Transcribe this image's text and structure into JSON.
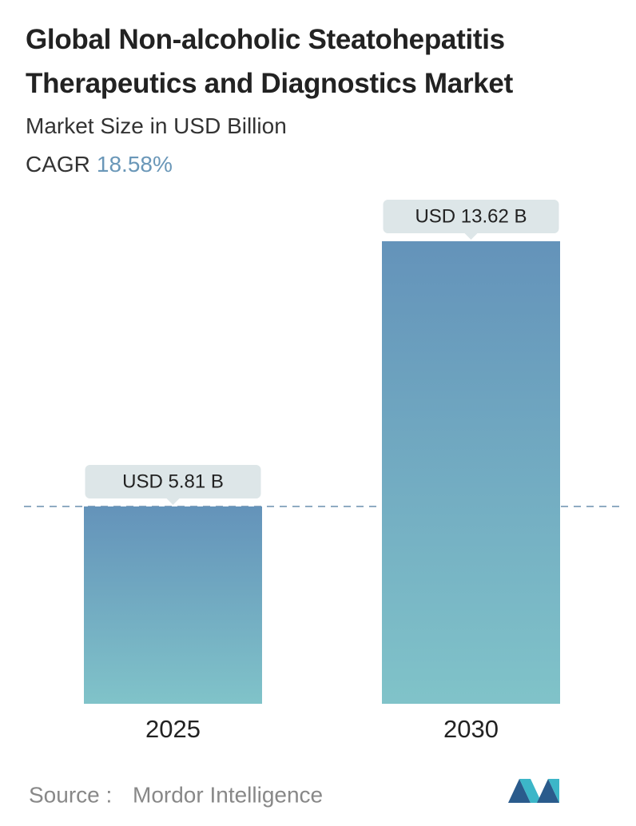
{
  "chart_data": {
    "type": "bar",
    "title": "Global Non-alcoholic Steatohepatitis Therapeutics and Diagnostics Market",
    "subtitle": "Market Size in USD Billion",
    "cagr_label": "CAGR",
    "cagr": "18.58%",
    "categories": [
      "2025",
      "2030"
    ],
    "values": [
      5.81,
      13.62
    ],
    "value_labels": [
      "USD 5.81 B",
      "USD 13.62 B"
    ],
    "color": "#6493ba",
    "source_label": "Source :",
    "source": "Mordor Intelligence"
  }
}
